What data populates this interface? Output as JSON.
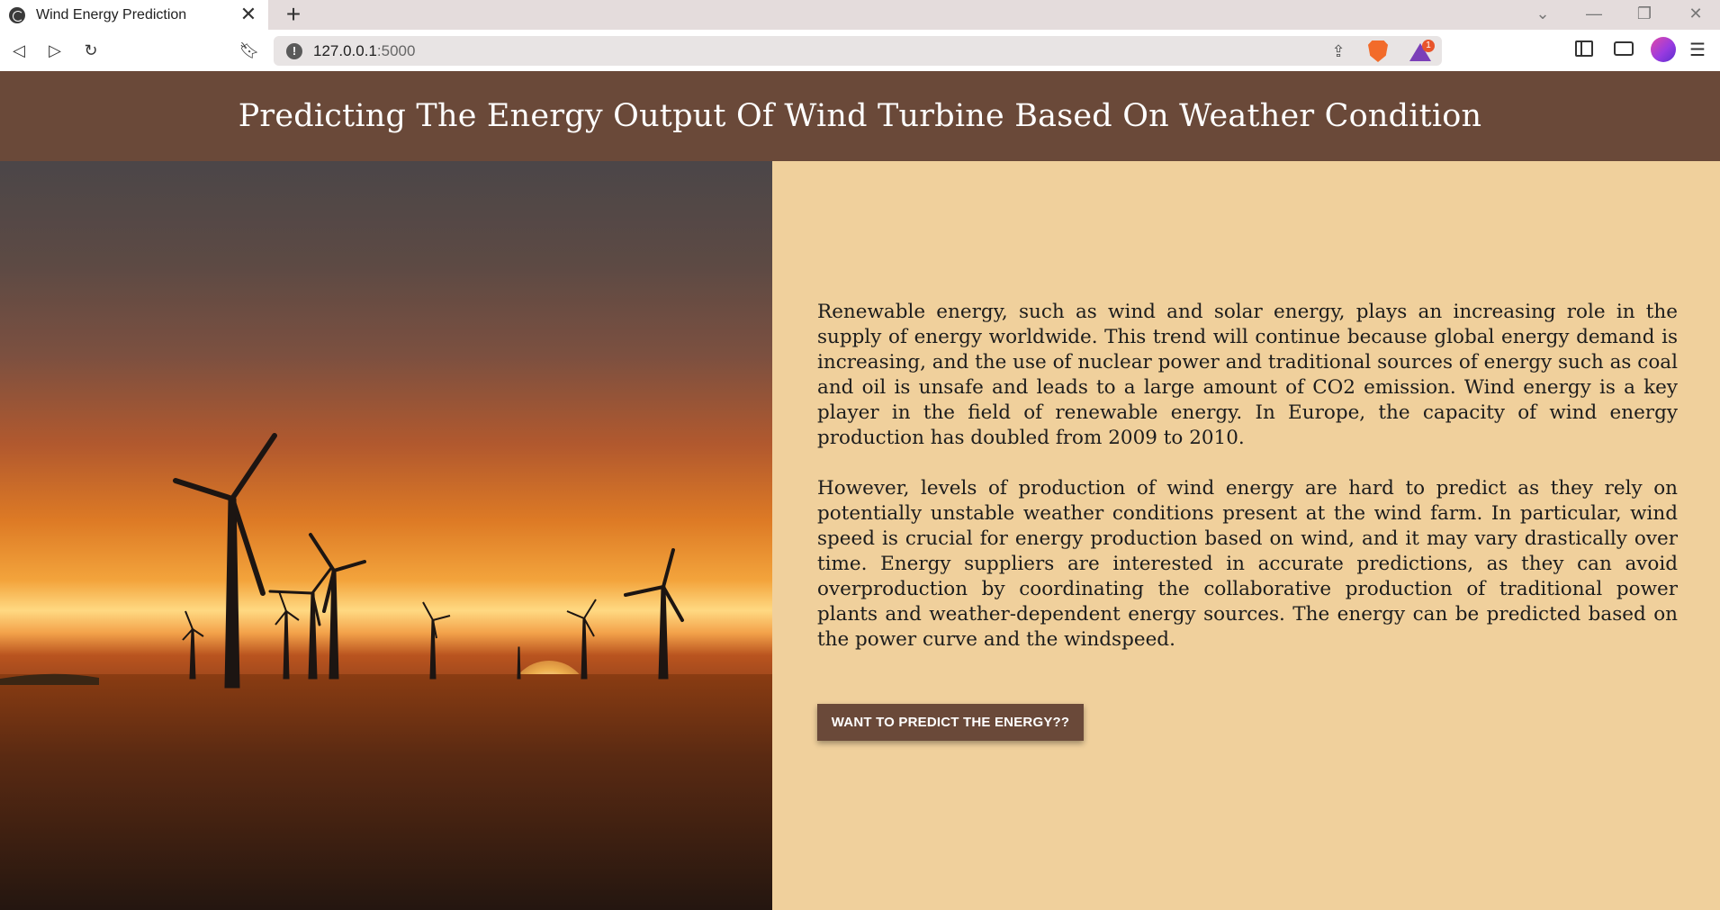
{
  "browser": {
    "tab_title": "Wind Energy Prediction",
    "tab_close_glyph": "✕",
    "new_tab_glyph": "+",
    "url_host": "127.0.0.1",
    "url_port": ":5000",
    "rewards_badge_count": "1"
  },
  "page": {
    "heading": "Predicting The Energy Output Of Wind Turbine Based On Weather Condition",
    "paragraphs": [
      "Renewable energy, such as wind and solar energy, plays an increasing role in the supply of energy worldwide. This trend will continue because global energy demand is increasing, and the use of nuclear power and traditional sources of energy such as coal and oil is unsafe and leads to a large amount of CO2 emission. Wind energy is a key player in the field of renewable energy. In Europe, the capacity of wind energy production has doubled from 2009 to 2010.",
      "However, levels of production of wind energy are hard to predict as they rely on potentially unstable weather conditions present at the wind farm. In particular, wind speed is crucial for energy production based on wind, and it may vary drastically over time. Energy suppliers are interested in accurate predictions, as they can avoid overproduction by coordinating the collaborative production of traditional power plants and weather-dependent energy sources. The energy can be predicted based on the power curve and the windspeed."
    ],
    "cta_label": "WANT TO PREDICT THE ENERGY??"
  },
  "colors": {
    "header_bg": "#6a4939",
    "content_bg": "#f0d09c",
    "button_bg": "#6a4939"
  }
}
